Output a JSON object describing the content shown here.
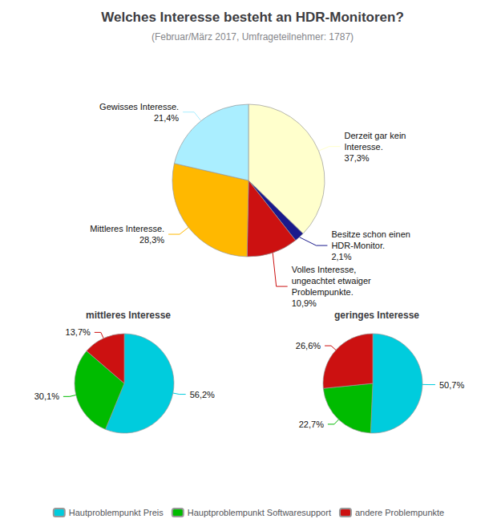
{
  "chart_data": [
    {
      "type": "pie",
      "title": "Welches Interesse besteht an HDR-Monitoren?",
      "subtitle": "(Februar/März 2017, Umfrageteilnehmer: 1787)",
      "categories": [
        "Derzeit gar kein\nInteresse.",
        "Besitze schon einen\nHDR-Monitor.",
        "Volles Interesse,\nungeachtet etwaiger\nProblempunkte.",
        "Mittleres Interesse.",
        "Gewisses Interesse."
      ],
      "values": [
        37.3,
        2.1,
        10.9,
        28.3,
        21.4
      ],
      "value_labels": [
        "37,3%",
        "2,1%",
        "10,9%",
        "28,3%",
        "21,4%"
      ],
      "colors": [
        "#FFFFCC",
        "#1a1a8c",
        "#CC1111",
        "#FFB800",
        "#AAEEFF"
      ],
      "data_labels": true
    },
    {
      "type": "pie",
      "title": "mittleres Interesse",
      "categories": [
        "Hautproblempunkt Preis",
        "Hauptproblempunkt Softwaresupport",
        "andere Problempunkte"
      ],
      "values": [
        56.2,
        30.1,
        13.7
      ],
      "value_labels": [
        "56,2%",
        "30,1%",
        "13,7%"
      ],
      "colors": [
        "#00CCDD",
        "#00BB00",
        "#CC1111"
      ],
      "data_labels": true,
      "legend": "bottom"
    },
    {
      "type": "pie",
      "title": "geringes Interesse",
      "categories": [
        "Hautproblempunkt Preis",
        "Hauptproblempunkt Softwaresupport",
        "andere Problempunkte"
      ],
      "values": [
        50.7,
        22.7,
        26.6
      ],
      "value_labels": [
        "50,7%",
        "22,7%",
        "26,6%"
      ],
      "colors": [
        "#00CCDD",
        "#00BB00",
        "#CC1111"
      ],
      "data_labels": true,
      "legend": "bottom"
    }
  ]
}
